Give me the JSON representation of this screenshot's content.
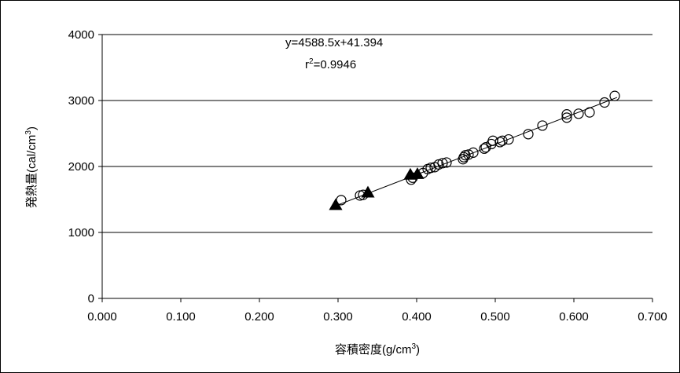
{
  "chart_data": {
    "type": "scatter",
    "xlabel": "容積密度(g/cm",
    "xlabel_sup": "3",
    "xlabel_close": ")",
    "ylabel": "発熱量(cal/cm",
    "ylabel_sup": "3",
    "ylabel_close": ")",
    "xlim": [
      0,
      0.7
    ],
    "ylim": [
      0,
      4000
    ],
    "xticks": [
      "0.000",
      "0.100",
      "0.200",
      "0.300",
      "0.400",
      "0.500",
      "0.600",
      "0.700"
    ],
    "yticks": [
      "0",
      "1000",
      "2000",
      "3000",
      "4000"
    ],
    "grid": "horizontal",
    "equation": "y=4588.5x+41.394",
    "r2_prefix": "r",
    "r2_sup": "2",
    "r2_value": "=0.9946",
    "trendline": {
      "slope": 4588.5,
      "intercept": 41.394,
      "x_range": [
        0.297,
        0.655
      ]
    },
    "series": [
      {
        "marker": "circle",
        "points": [
          [
            0.304,
            1490
          ],
          [
            0.328,
            1560
          ],
          [
            0.332,
            1570
          ],
          [
            0.393,
            1800
          ],
          [
            0.395,
            1830
          ],
          [
            0.408,
            1900
          ],
          [
            0.414,
            1960
          ],
          [
            0.418,
            1980
          ],
          [
            0.423,
            1990
          ],
          [
            0.428,
            2030
          ],
          [
            0.433,
            2050
          ],
          [
            0.438,
            2060
          ],
          [
            0.459,
            2110
          ],
          [
            0.46,
            2140
          ],
          [
            0.462,
            2170
          ],
          [
            0.466,
            2180
          ],
          [
            0.472,
            2210
          ],
          [
            0.486,
            2270
          ],
          [
            0.488,
            2290
          ],
          [
            0.495,
            2340
          ],
          [
            0.497,
            2390
          ],
          [
            0.506,
            2370
          ],
          [
            0.509,
            2390
          ],
          [
            0.517,
            2410
          ],
          [
            0.542,
            2490
          ],
          [
            0.56,
            2620
          ],
          [
            0.591,
            2740
          ],
          [
            0.591,
            2790
          ],
          [
            0.606,
            2800
          ],
          [
            0.62,
            2820
          ],
          [
            0.639,
            2970
          ],
          [
            0.652,
            3070
          ]
        ]
      },
      {
        "marker": "triangle",
        "points": [
          [
            0.297,
            1410
          ],
          [
            0.338,
            1600
          ],
          [
            0.392,
            1870
          ],
          [
            0.401,
            1880
          ]
        ]
      }
    ]
  }
}
